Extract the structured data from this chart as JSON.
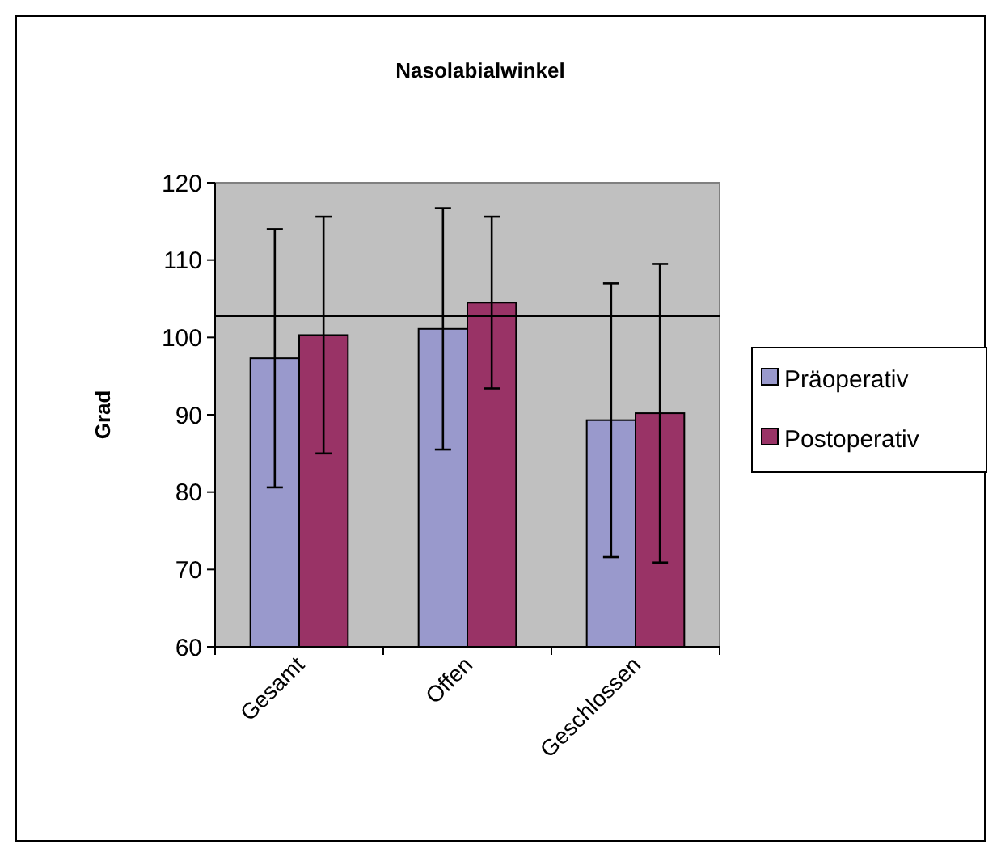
{
  "chart_data": {
    "type": "bar",
    "title": "Nasolabialwinkel",
    "ylabel": "Grad",
    "categories": [
      "Gesamt",
      "Offen",
      "Geschlossen"
    ],
    "series": [
      {
        "name": "Präoperativ",
        "color": "#9999cc",
        "values": [
          97.3,
          101.1,
          89.3
        ],
        "errors": [
          16.7,
          15.6,
          17.7
        ]
      },
      {
        "name": "Postoperativ",
        "color": "#993366",
        "values": [
          100.3,
          104.5,
          90.2
        ],
        "errors": [
          15.3,
          11.1,
          19.3
        ]
      }
    ],
    "ylim": [
      60,
      120
    ],
    "yticks": [
      60,
      70,
      80,
      90,
      100,
      110,
      120
    ],
    "ref_lines": [
      {
        "axis": "y",
        "value": 102.8,
        "color": "#000000"
      }
    ],
    "grid": false,
    "legend": "right"
  }
}
